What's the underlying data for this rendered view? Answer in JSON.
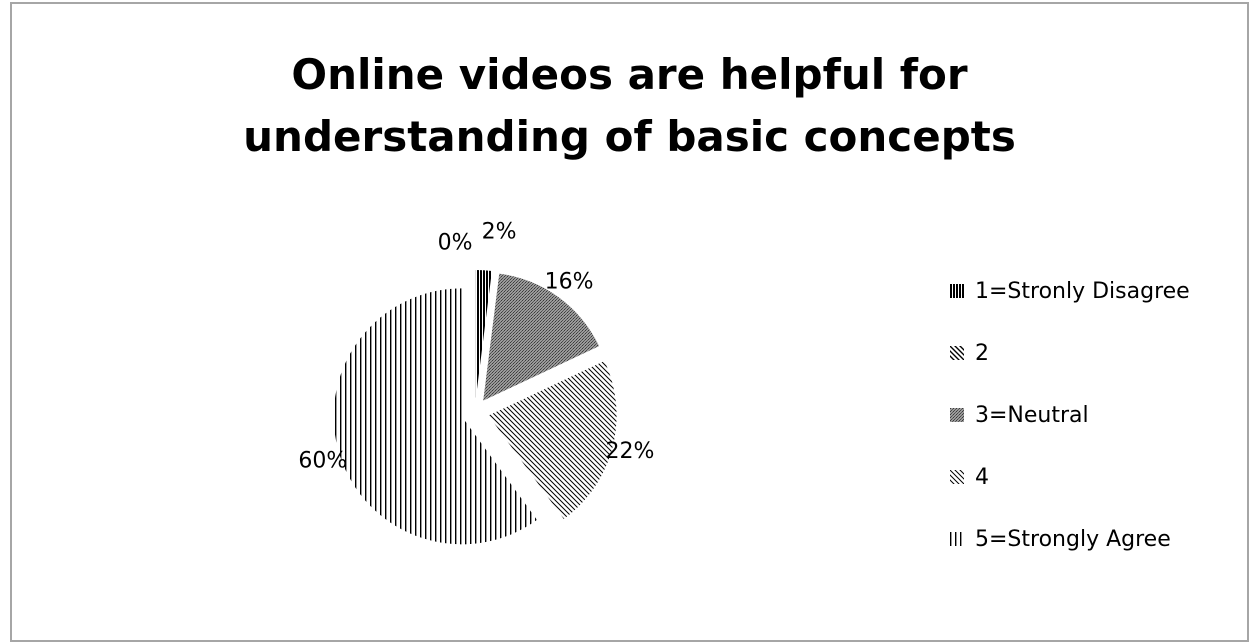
{
  "chart_data": {
    "type": "pie",
    "title": "Online videos are helpful for understanding of basic concepts",
    "title_lines": [
      "Online videos are helpful for",
      "understanding of basic concepts"
    ],
    "categories": [
      "1=Stronly Disagree",
      "2",
      "3=Neutral",
      "4",
      "5=Strongly Agree"
    ],
    "values": [
      2,
      0,
      16,
      22,
      60
    ],
    "data_labels": [
      "2%",
      "0%",
      "16%",
      "22%",
      "60%"
    ],
    "exploded": true,
    "legend_position": "right",
    "fills": [
      "dense vertical hatch",
      "diagonal hatch",
      "dark gray dots",
      "light diagonal hatch",
      "sparse vertical hatch"
    ]
  },
  "colors": {
    "text": "#000000",
    "border": "#a6a6a6",
    "background": "#ffffff",
    "neutral_fill": "#7f7f7f"
  }
}
